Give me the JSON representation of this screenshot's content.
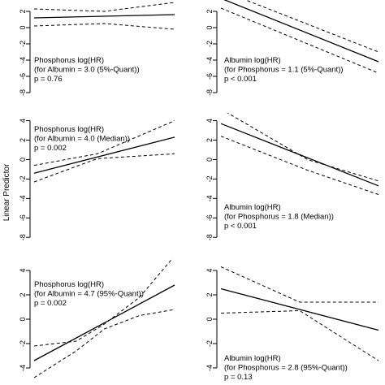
{
  "figure": {
    "ylabel": "Linear Predictor"
  },
  "chart_data": [
    {
      "type": "line",
      "panel": "left-1",
      "annotation": [
        "Phosphorus log(HR)",
        "(for Albumin = 3.0 (5%-Quant))",
        "p = 0.76"
      ],
      "ylim": [
        -8.4,
        3.4
      ],
      "yticks": [
        -8,
        -6,
        -4,
        -2,
        0,
        2
      ],
      "xlim": [
        0,
        1
      ],
      "series": [
        {
          "role": "estimate",
          "x": [
            0,
            1
          ],
          "y": [
            1.2,
            1.6
          ]
        },
        {
          "role": "ci",
          "x": [
            0,
            0.5,
            1
          ],
          "y": [
            2.3,
            2.0,
            3.1
          ]
        },
        {
          "role": "ci",
          "x": [
            0,
            0.5,
            1
          ],
          "y": [
            0.2,
            0.5,
            -0.2
          ]
        }
      ]
    },
    {
      "type": "line",
      "panel": "right-1",
      "annotation": [
        "Albumin log(HR)",
        "(for Phosphorus = 1.1 (5%-Quant))",
        "p < 0.001"
      ],
      "ylim": [
        -8.4,
        3.4
      ],
      "yticks": [
        -8,
        -6,
        -4,
        -2,
        0,
        2
      ],
      "xlim": [
        0,
        1
      ],
      "series": [
        {
          "role": "estimate",
          "x": [
            0,
            1
          ],
          "y": [
            3.6,
            -4.2
          ]
        },
        {
          "role": "ci",
          "x": [
            0,
            1
          ],
          "y": [
            4.6,
            -3.0
          ]
        },
        {
          "role": "ci",
          "x": [
            0,
            1
          ],
          "y": [
            2.4,
            -5.6
          ]
        }
      ]
    },
    {
      "type": "line",
      "panel": "left-2",
      "annotation": [
        "Phosphorus log(HR)",
        "(for Albumin = 4.0 (Median))",
        "p = 0.002"
      ],
      "ylim": [
        -8.4,
        4.8
      ],
      "yticks": [
        -8,
        -6,
        -4,
        -2,
        0,
        2,
        4
      ],
      "xlim": [
        0,
        1
      ],
      "series": [
        {
          "role": "estimate",
          "x": [
            0,
            1
          ],
          "y": [
            -1.4,
            2.3
          ]
        },
        {
          "role": "ci",
          "x": [
            0,
            0.45,
            1
          ],
          "y": [
            -0.6,
            0.6,
            4.0
          ]
        },
        {
          "role": "ci",
          "x": [
            0,
            0.45,
            1
          ],
          "y": [
            -2.3,
            0.1,
            0.6
          ]
        }
      ]
    },
    {
      "type": "line",
      "panel": "right-2",
      "annotation": [
        "Albumin log(HR)",
        "(for Phosphorus = 1.8 (Median))",
        "p < 0.001"
      ],
      "ylim": [
        -8.4,
        4.8
      ],
      "yticks": [
        -8,
        -6,
        -4,
        -2,
        0,
        2,
        4
      ],
      "xlim": [
        0,
        1
      ],
      "series": [
        {
          "role": "estimate",
          "x": [
            0,
            1
          ],
          "y": [
            3.7,
            -2.7
          ]
        },
        {
          "role": "ci",
          "x": [
            0,
            0.55,
            1
          ],
          "y": [
            5.2,
            0.0,
            -2.2
          ]
        },
        {
          "role": "ci",
          "x": [
            0,
            0.55,
            1
          ],
          "y": [
            2.4,
            -1.1,
            -3.6
          ]
        }
      ]
    },
    {
      "type": "line",
      "panel": "left-3",
      "annotation": [
        "Phosphorus log(HR)",
        "(for Albumin = 4.7 (95%-Quant))",
        "p = 0.002"
      ],
      "ylim": [
        -5.4,
        5.0
      ],
      "yticks": [
        -4,
        -2,
        0,
        2,
        4
      ],
      "xlim": [
        0,
        1
      ],
      "series": [
        {
          "role": "estimate",
          "x": [
            0,
            1
          ],
          "y": [
            -3.4,
            2.8
          ]
        },
        {
          "role": "ci",
          "x": [
            0,
            0.3,
            0.5,
            0.75,
            1
          ],
          "y": [
            -2.2,
            -1.8,
            -0.4,
            1.8,
            5.2
          ]
        },
        {
          "role": "ci",
          "x": [
            0,
            0.3,
            0.5,
            0.75,
            1
          ],
          "y": [
            -4.8,
            -2.6,
            -0.8,
            0.3,
            0.8
          ]
        }
      ]
    },
    {
      "type": "line",
      "panel": "right-3",
      "annotation": [
        "Albumin log(HR)",
        "(for Phosphorus = 2.8 (95%-Quant))",
        "p = 0.13"
      ],
      "ylim": [
        -5.4,
        5.0
      ],
      "yticks": [
        -4,
        -2,
        0,
        2,
        4
      ],
      "xlim": [
        0,
        1
      ],
      "series": [
        {
          "role": "estimate",
          "x": [
            0,
            1
          ],
          "y": [
            2.5,
            -0.9
          ]
        },
        {
          "role": "ci",
          "x": [
            0,
            0.5,
            1
          ],
          "y": [
            4.3,
            1.4,
            1.4
          ]
        },
        {
          "role": "ci",
          "x": [
            0,
            0.5,
            1
          ],
          "y": [
            0.5,
            0.7,
            -3.4
          ]
        }
      ]
    }
  ]
}
